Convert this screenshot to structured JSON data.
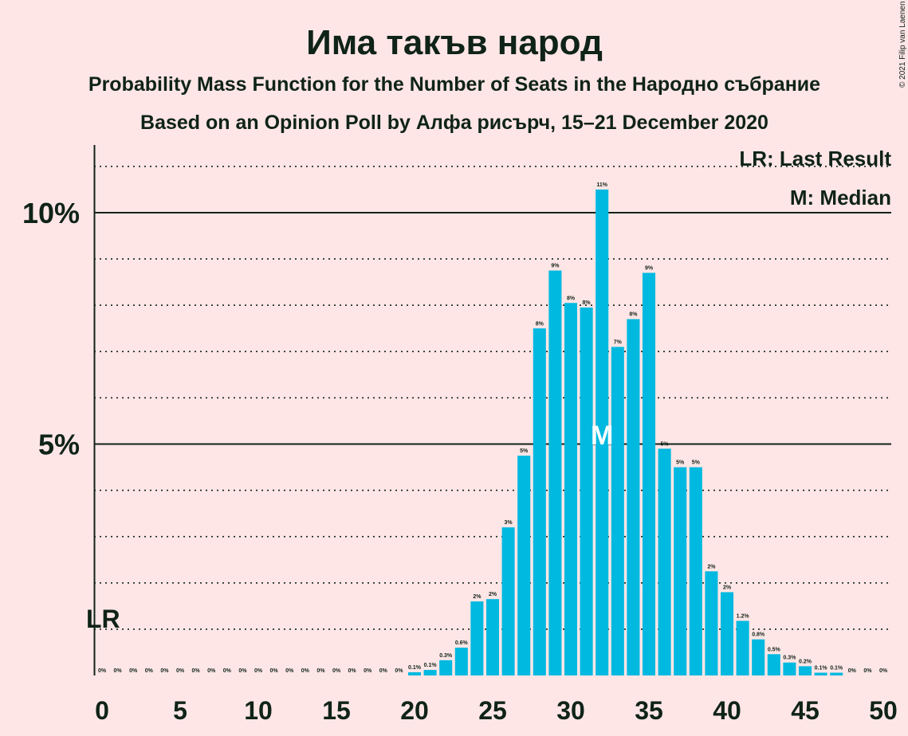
{
  "chart_data": {
    "type": "bar",
    "title": "Има такъв народ",
    "subtitle": "Probability Mass Function for the Number of Seats in the Народно събрание",
    "subtitle2": "Based on an Opinion Poll by Алфа рисърч, 15–21 December 2020",
    "copyright": "© 2021 Filip van Laenen",
    "legend": {
      "lr": "LR: Last Result",
      "median": "M: Median"
    },
    "lr_label": "LR",
    "median_label": "M",
    "median_seat": 32,
    "last_result_seat": 0,
    "x": [
      0,
      1,
      2,
      3,
      4,
      5,
      6,
      7,
      8,
      9,
      10,
      11,
      12,
      13,
      14,
      15,
      16,
      17,
      18,
      19,
      20,
      21,
      22,
      23,
      24,
      25,
      26,
      27,
      28,
      29,
      30,
      31,
      32,
      33,
      34,
      35,
      36,
      37,
      38,
      39,
      40,
      41,
      42,
      43,
      44,
      45,
      46,
      47,
      48,
      49,
      50
    ],
    "values": [
      0,
      0,
      0,
      0,
      0,
      0,
      0,
      0,
      0,
      0,
      0,
      0,
      0,
      0,
      0,
      0,
      0,
      0,
      0,
      0,
      0.07,
      0.12,
      0.33,
      0.6,
      1.6,
      1.65,
      3.2,
      4.75,
      7.5,
      8.75,
      8.05,
      7.95,
      10.5,
      7.1,
      7.7,
      8.7,
      4.9,
      4.5,
      4.5,
      2.25,
      1.8,
      1.18,
      0.78,
      0.46,
      0.28,
      0.2,
      0.06,
      0.06,
      0,
      0,
      0
    ],
    "labels": [
      "0%",
      "0%",
      "0%",
      "0%",
      "0%",
      "0%",
      "0%",
      "0%",
      "0%",
      "0%",
      "0%",
      "0%",
      "0%",
      "0%",
      "0%",
      "0%",
      "0%",
      "0%",
      "0%",
      "0%",
      "0.1%",
      "0.1%",
      "0.3%",
      "0.6%",
      "2%",
      "2%",
      "3%",
      "5%",
      "8%",
      "9%",
      "8%",
      "8%",
      "11%",
      "7%",
      "8%",
      "9%",
      "5%",
      "5%",
      "5%",
      "2%",
      "2%",
      "1.2%",
      "0.8%",
      "0.5%",
      "0.3%",
      "0.2%",
      "0.1%",
      "0.1%",
      "0%",
      "0%",
      "0%"
    ],
    "xticks": [
      0,
      5,
      10,
      15,
      20,
      25,
      30,
      35,
      40,
      45,
      50
    ],
    "yticks": [
      {
        "value": 5,
        "label": "5%"
      },
      {
        "value": 10,
        "label": "10%"
      }
    ],
    "ylim": [
      0,
      11.5
    ],
    "xlim": [
      0,
      50
    ],
    "bar_color": "#00B9E0",
    "grid": true
  }
}
